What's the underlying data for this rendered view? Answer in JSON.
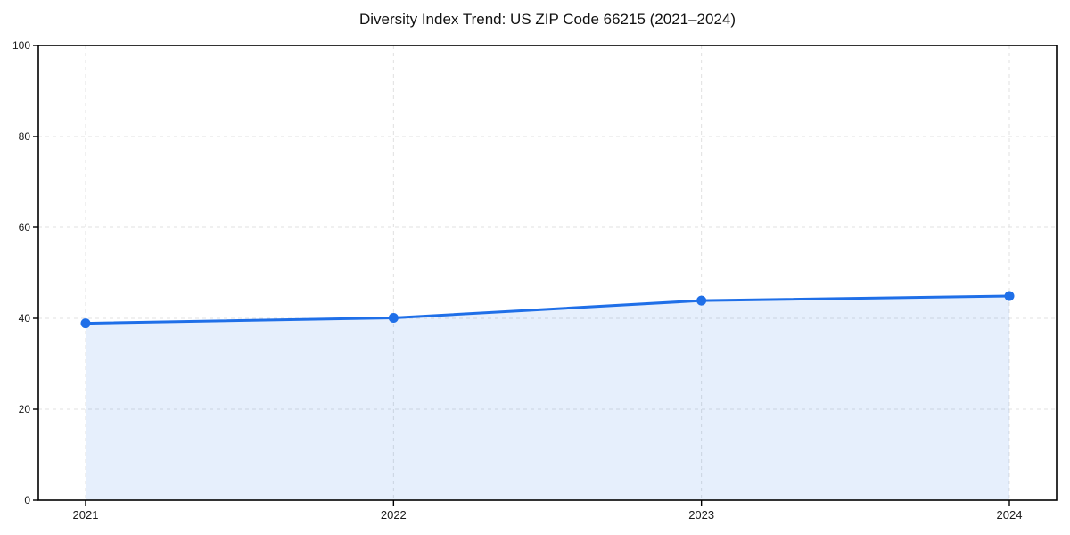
{
  "chart_data": {
    "type": "area",
    "title": "Diversity Index Trend: US ZIP Code 66215 (2021–2024)",
    "categories": [
      "2021",
      "2022",
      "2023",
      "2024"
    ],
    "series": [
      {
        "name": "Diversity Index",
        "values": [
          38.9,
          40.1,
          43.9,
          44.9
        ]
      }
    ],
    "xlabel": "",
    "ylabel": "",
    "ylim": [
      0,
      100
    ],
    "yticks": [
      0,
      20,
      40,
      60,
      80,
      100
    ],
    "grid": "dashed, horizontal and vertical",
    "legend_position": "none",
    "line_color": "#1f6fe8",
    "fill_opacity": 0.11,
    "marker_color": "#1f6fe8",
    "axis_color": "#000000",
    "grid_color": "#e0e0e0",
    "tick_label_color": "#1a1a1a",
    "background_color": "#ffffff"
  }
}
